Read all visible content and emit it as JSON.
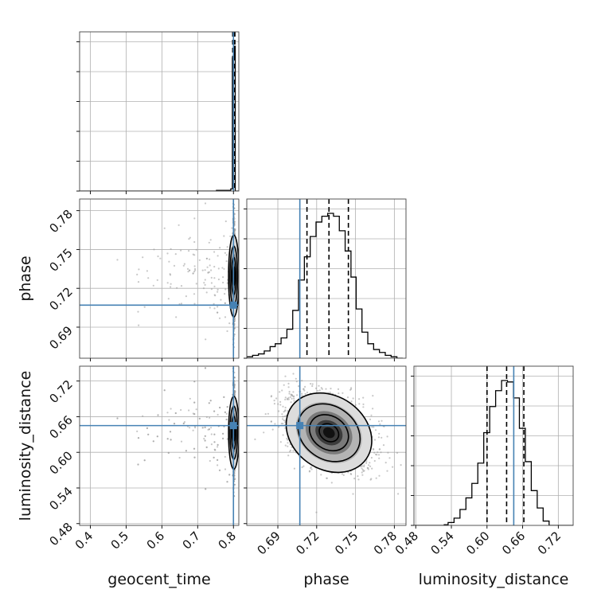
{
  "chart_data": {
    "type": "corner",
    "parameters": [
      "geocent_time",
      "phase",
      "luminosity_distance"
    ],
    "truth_color": "#4682b4",
    "truths": {
      "geocent_time": 0.8,
      "phase": 0.707,
      "luminosity_distance": 0.645
    },
    "ranges": {
      "geocent_time": [
        0.37,
        0.815
      ],
      "phase": [
        0.666,
        0.789
      ],
      "luminosity_distance": [
        0.477,
        0.745
      ]
    },
    "ticks": {
      "geocent_time": {
        "values": [
          0.4,
          0.5,
          0.6,
          0.7,
          0.8
        ],
        "labels": [
          "0.4",
          "0.5",
          "0.6",
          "0.7",
          "0.8"
        ]
      },
      "phase": {
        "values": [
          0.69,
          0.72,
          0.75,
          0.78
        ],
        "labels": [
          "0.69",
          "0.72",
          "0.75",
          "0.78"
        ]
      },
      "luminosity_distance": {
        "values": [
          0.48,
          0.54,
          0.6,
          0.66,
          0.72
        ],
        "labels": [
          "0.48",
          "0.54",
          "0.60",
          "0.66",
          "0.72"
        ]
      }
    },
    "quantiles": {
      "geocent_time": [
        0.798,
        0.801,
        0.804
      ],
      "phase": [
        0.7125,
        0.7295,
        0.7445
      ],
      "luminosity_distance": [
        0.6,
        0.633,
        0.662
      ]
    },
    "histograms": {
      "geocent_time": {
        "edges": [
          0.37,
          0.7525,
          0.7925,
          0.797,
          0.8025,
          0.805,
          0.815
        ],
        "counts": [
          0,
          0.5,
          1.5,
          92,
          100,
          0
        ]
      },
      "phase": {
        "edges": [
          0.666,
          0.6705,
          0.675,
          0.6795,
          0.684,
          0.688,
          0.6925,
          0.697,
          0.7015,
          0.706,
          0.7105,
          0.715,
          0.7195,
          0.724,
          0.7285,
          0.733,
          0.7375,
          0.742,
          0.7465,
          0.7505,
          0.755,
          0.7595,
          0.764,
          0.7685,
          0.773,
          0.7775,
          0.782,
          0.7865
        ],
        "counts": [
          1,
          2,
          3,
          5,
          8,
          10,
          14,
          20,
          33,
          54,
          70,
          84,
          94,
          98,
          100,
          98,
          88,
          74,
          56,
          34,
          18,
          10,
          6,
          4,
          2,
          1,
          0
        ]
      },
      "luminosity_distance": {
        "edges": [
          0.477,
          0.528,
          0.5345,
          0.5445,
          0.5545,
          0.5645,
          0.5745,
          0.5845,
          0.5945,
          0.6045,
          0.6145,
          0.6245,
          0.6345,
          0.6445,
          0.6545,
          0.6645,
          0.6745,
          0.6845,
          0.6945,
          0.7045,
          0.745
        ],
        "counts": [
          0,
          0.5,
          2,
          5,
          11,
          19,
          29,
          43,
          64,
          82,
          93,
          100,
          99,
          88,
          67,
          44,
          24,
          12,
          3,
          0
        ]
      }
    }
  }
}
